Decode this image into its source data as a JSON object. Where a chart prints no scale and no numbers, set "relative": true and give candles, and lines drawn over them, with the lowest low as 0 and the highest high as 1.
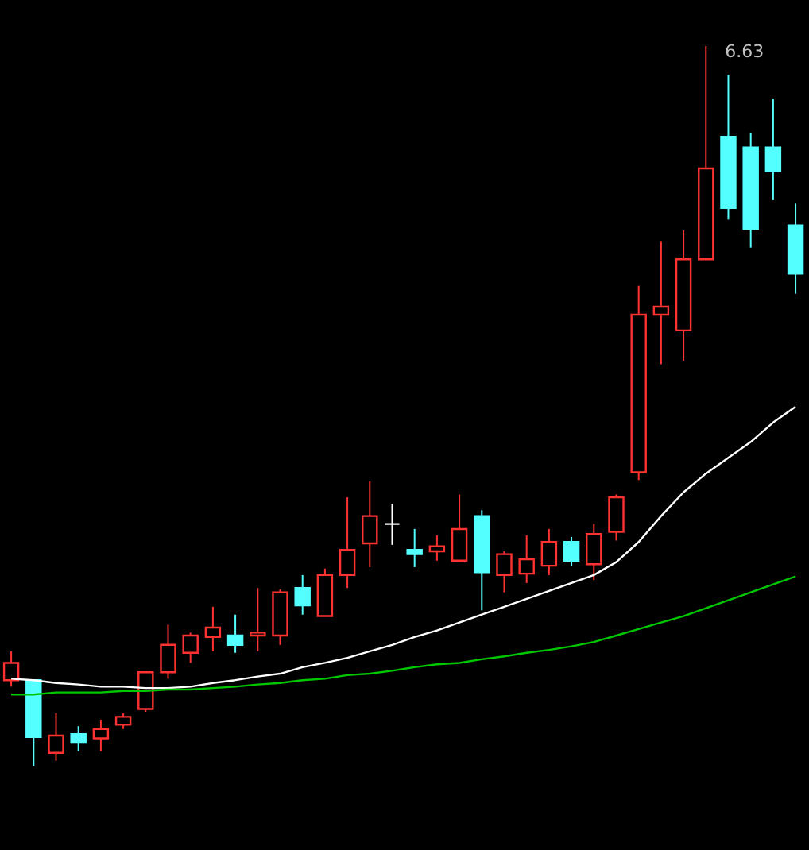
{
  "chart_data": {
    "type": "candlestick",
    "relative": true,
    "categories": [
      null,
      null,
      null,
      null,
      null,
      null,
      null,
      null,
      null,
      null,
      null,
      null,
      null,
      null,
      null,
      null,
      null,
      null,
      null,
      null,
      null,
      null,
      null,
      null,
      null,
      null,
      null,
      null,
      null,
      null,
      null,
      null,
      null,
      null,
      null,
      null
    ],
    "ohlc": [
      [
        0.119,
        0.159,
        0.11,
        0.143
      ],
      [
        0.119,
        0.119,
        0,
        0.04
      ],
      [
        0.018,
        0.073,
        0.007,
        0.042
      ],
      [
        0.044,
        0.055,
        0.02,
        0.033
      ],
      [
        0.038,
        0.064,
        0.02,
        0.051
      ],
      [
        0.057,
        0.073,
        0.051,
        0.068
      ],
      [
        0.079,
        0.13,
        0.075,
        0.13
      ],
      [
        0.13,
        0.196,
        0.121,
        0.168
      ],
      [
        0.157,
        0.185,
        0.143,
        0.181
      ],
      [
        0.179,
        0.221,
        0.159,
        0.192
      ],
      [
        0.181,
        0.21,
        0.157,
        0.168
      ],
      [
        0.181,
        0.247,
        0.159,
        0.185
      ],
      [
        0.181,
        0.245,
        0.168,
        0.241
      ],
      [
        0.247,
        0.265,
        0.21,
        0.223
      ],
      [
        0.208,
        0.274,
        0.208,
        0.265
      ],
      [
        0.265,
        0.373,
        0.247,
        0.3
      ],
      [
        0.309,
        0.395,
        0.276,
        0.347
      ],
      [
        0.336,
        0.364,
        0.307,
        0.336
      ],
      [
        0.3,
        0.329,
        0.276,
        0.294
      ],
      [
        0.298,
        0.32,
        0.285,
        0.305
      ],
      [
        0.285,
        0.377,
        0.285,
        0.329
      ],
      [
        0.347,
        0.355,
        0.216,
        0.269
      ],
      [
        0.265,
        0.298,
        0.241,
        0.294
      ],
      [
        0.267,
        0.32,
        0.254,
        0.287
      ],
      [
        0.278,
        0.329,
        0.265,
        0.311
      ],
      [
        0.311,
        0.318,
        0.278,
        0.285
      ],
      [
        0.28,
        0.336,
        0.258,
        0.322
      ],
      [
        0.325,
        0.377,
        0.313,
        0.373
      ],
      [
        0.408,
        0.667,
        0.397,
        0.627
      ],
      [
        0.627,
        0.728,
        0.558,
        0.638
      ],
      [
        0.605,
        0.744,
        0.563,
        0.704
      ],
      [
        0.704,
        1,
        0.704,
        0.83
      ],
      [
        0.874,
        0.96,
        0.759,
        0.775
      ],
      [
        0.859,
        0.879,
        0.72,
        0.746
      ],
      [
        0.859,
        0.927,
        0.786,
        0.826
      ],
      [
        0.751,
        0.781,
        0.656,
        0.684
      ]
    ],
    "colors": [
      "#ff3232",
      "#54ffff",
      "#ff3232",
      "#54ffff",
      "#ff3232",
      "#ff3232",
      "#ff3232",
      "#ff3232",
      "#ff3232",
      "#ff3232",
      "#54ffff",
      "#ff3232",
      "#ff3232",
      "#54ffff",
      "#ff3232",
      "#ff3232",
      "#ff3232",
      "#ffffff",
      "#54ffff",
      "#ff3232",
      "#ff3232",
      "#54ffff",
      "#ff3232",
      "#ff3232",
      "#ff3232",
      "#54ffff",
      "#ff3232",
      "#ff3232",
      "#ff3232",
      "#ff3232",
      "#ff3232",
      "#ff3232",
      "#54ffff",
      "#54ffff",
      "#54ffff",
      "#54ffff"
    ],
    "series": [
      {
        "type": "line",
        "color": "#ffffff",
        "values": [
          0.121,
          0.119,
          0.115,
          0.113,
          0.11,
          0.11,
          0.108,
          0.108,
          0.11,
          0.115,
          0.119,
          0.124,
          0.128,
          0.137,
          0.143,
          0.15,
          0.159,
          0.168,
          0.179,
          0.188,
          0.199,
          0.21,
          0.221,
          0.232,
          0.243,
          0.254,
          0.265,
          0.283,
          0.311,
          0.347,
          0.38,
          0.406,
          0.428,
          0.45,
          0.477,
          0.499
        ]
      },
      {
        "type": "line",
        "color": "#00c800",
        "values": [
          0.099,
          0.099,
          0.102,
          0.102,
          0.102,
          0.104,
          0.104,
          0.106,
          0.106,
          0.108,
          0.11,
          0.113,
          0.115,
          0.119,
          0.121,
          0.126,
          0.128,
          0.132,
          0.137,
          0.141,
          0.143,
          0.148,
          0.152,
          0.157,
          0.161,
          0.166,
          0.172,
          0.181,
          0.19,
          0.199,
          0.208,
          0.219,
          0.23,
          0.241,
          0.252,
          0.263
        ]
      }
    ],
    "annotations": [
      "6.63"
    ]
  }
}
